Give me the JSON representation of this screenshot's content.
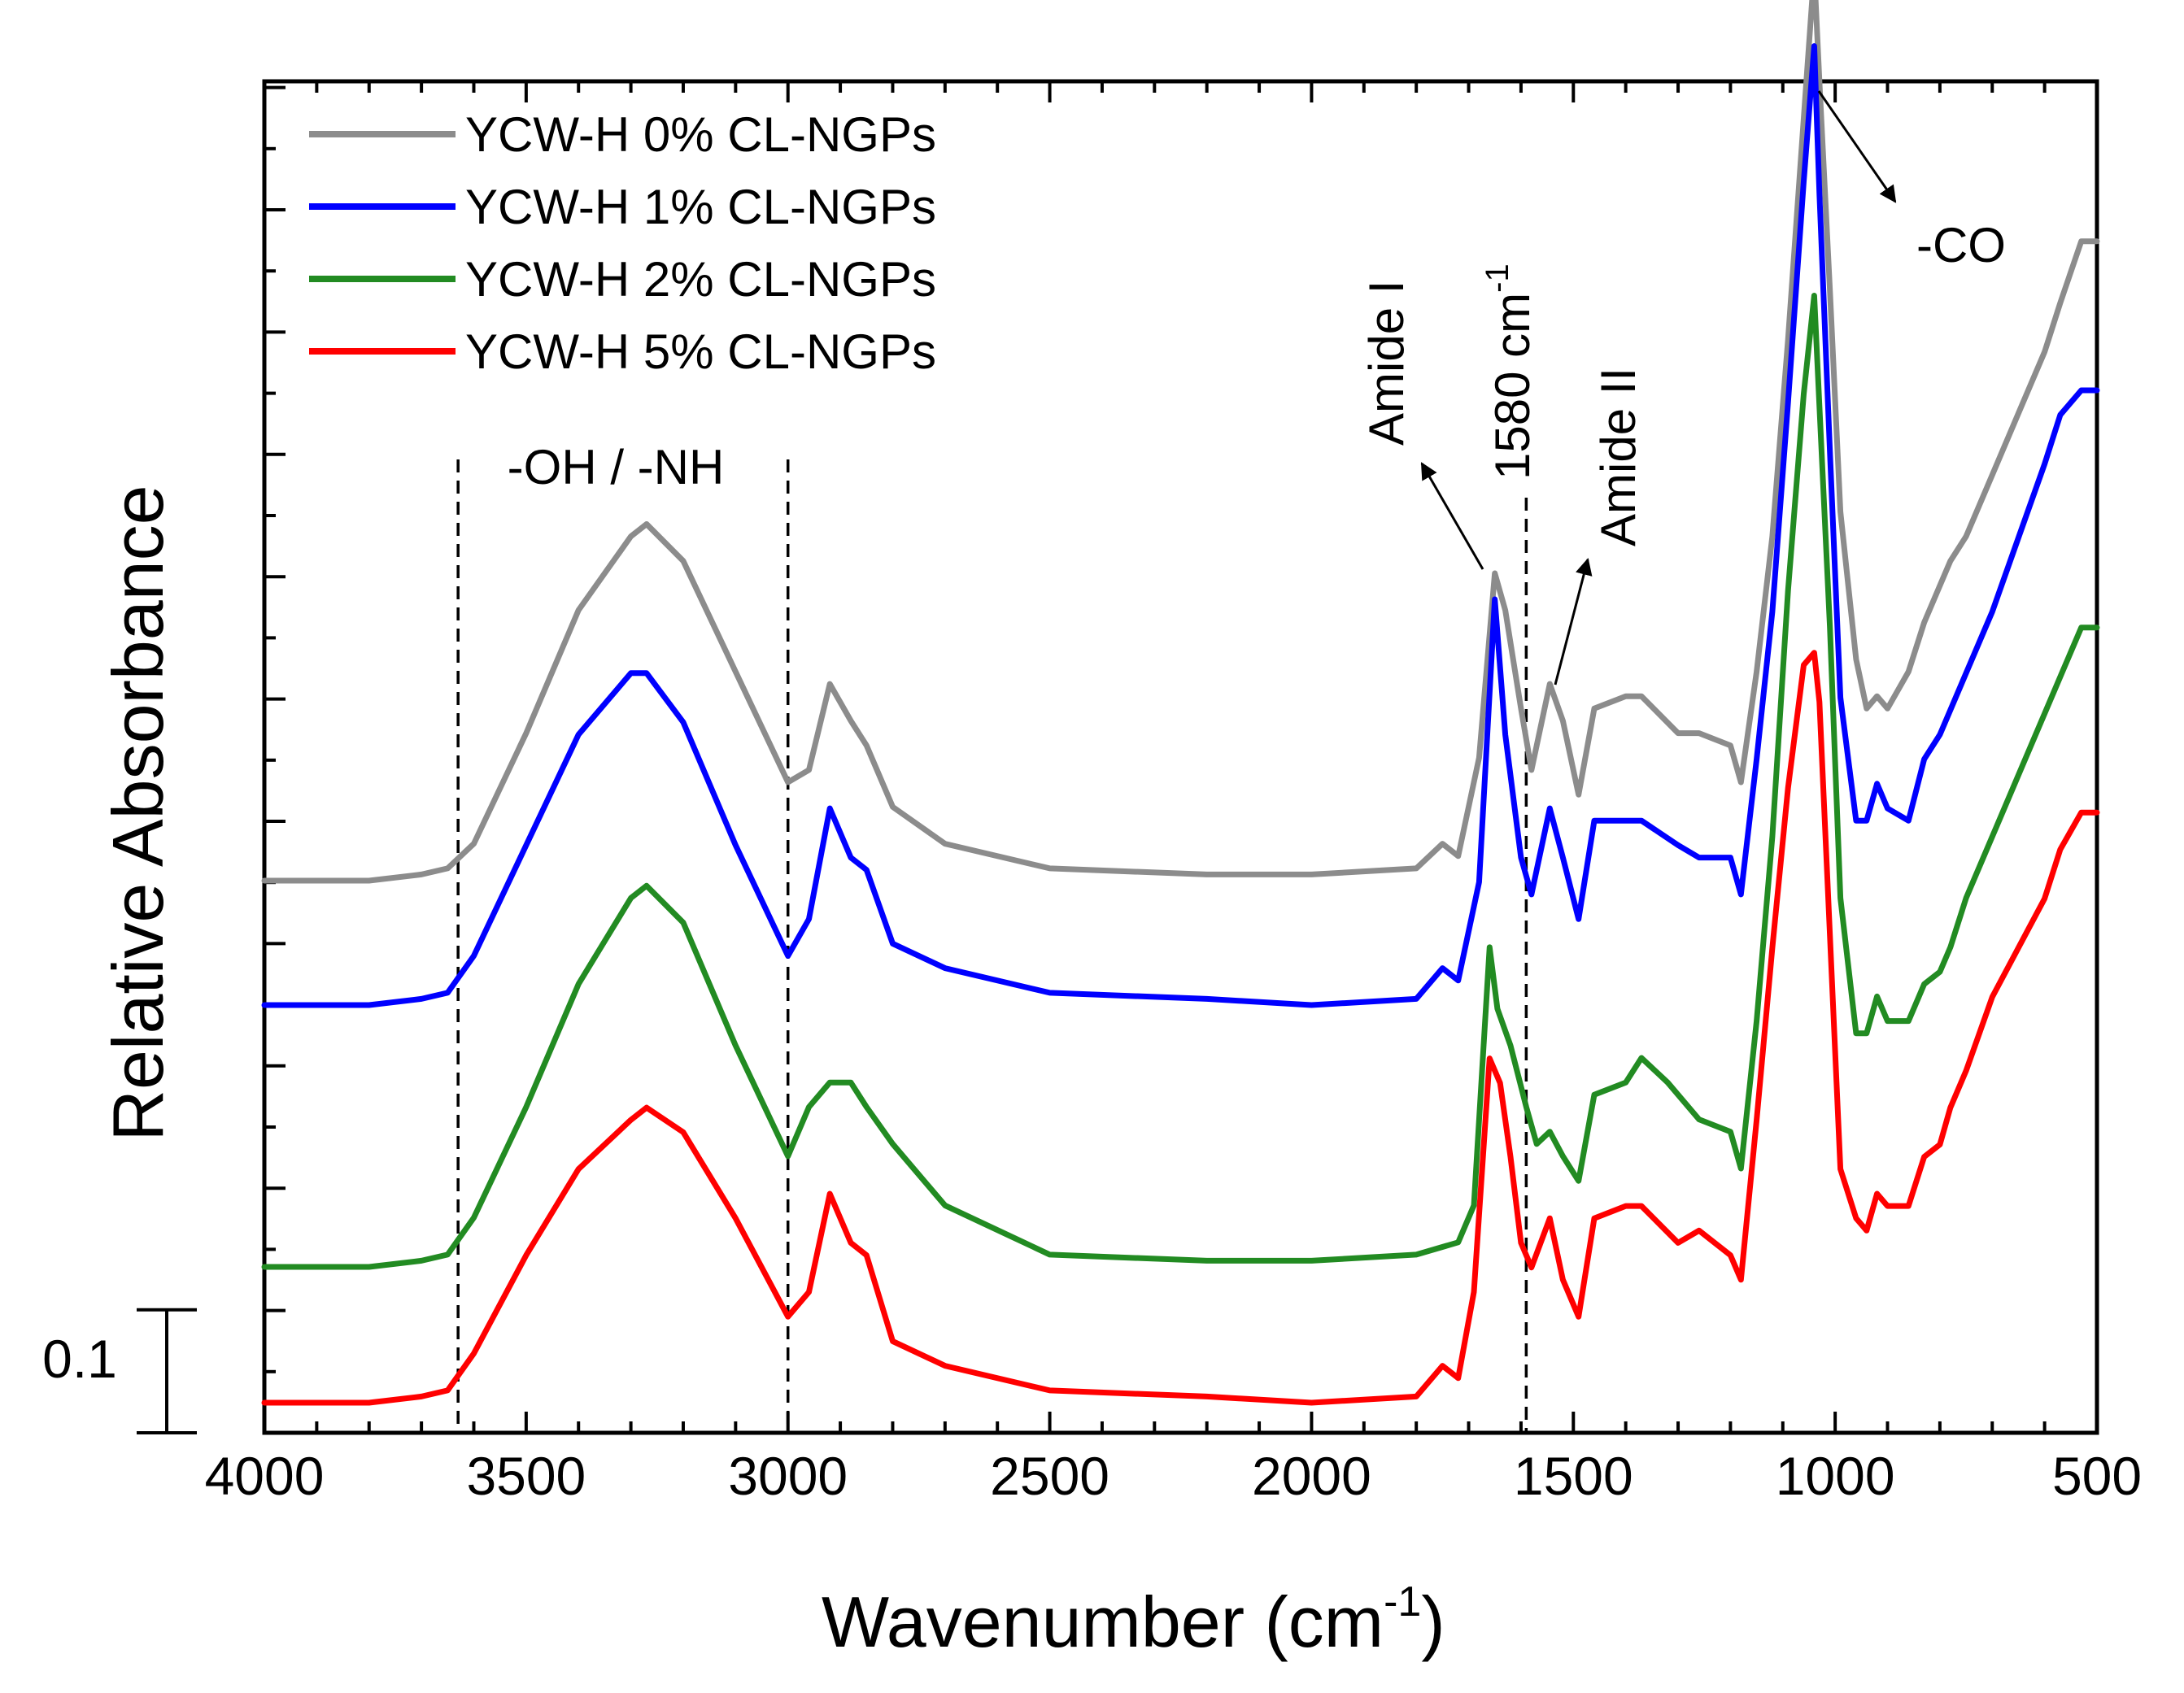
{
  "chart_data": {
    "type": "line",
    "title": "",
    "xlabel": "Wavenumber (cm",
    "xlabel_sup": "-1",
    "xlabel_close": ")",
    "ylabel": "Relative Absorbance",
    "xlim": [
      4000,
      500
    ],
    "x_reversed": true,
    "xticks": [
      4000,
      3500,
      3000,
      2500,
      2000,
      1500,
      1000,
      500
    ],
    "y_units": "relative absorbance (stacked, offset)",
    "scale_bar": {
      "label": "0.1",
      "value": 0.1
    },
    "y_offsets": [
      0.69,
      0.59,
      0.39,
      0.26
    ],
    "series": [
      {
        "name": "YCW-H 0% CL-NGPs",
        "color": "#8c8c8c",
        "points": [
          [
            4000,
            0
          ],
          [
            3800,
            0
          ],
          [
            3700,
            0.005
          ],
          [
            3650,
            0.01
          ],
          [
            3600,
            0.03
          ],
          [
            3500,
            0.12
          ],
          [
            3400,
            0.22
          ],
          [
            3300,
            0.28
          ],
          [
            3270,
            0.29
          ],
          [
            3200,
            0.26
          ],
          [
            3100,
            0.17
          ],
          [
            3000,
            0.08
          ],
          [
            2960,
            0.09
          ],
          [
            2920,
            0.16
          ],
          [
            2880,
            0.13
          ],
          [
            2850,
            0.11
          ],
          [
            2800,
            0.06
          ],
          [
            2700,
            0.03
          ],
          [
            2500,
            0.01
          ],
          [
            2200,
            0.005
          ],
          [
            2000,
            0.005
          ],
          [
            1800,
            0.01
          ],
          [
            1750,
            0.03
          ],
          [
            1720,
            0.02
          ],
          [
            1680,
            0.1
          ],
          [
            1650,
            0.25
          ],
          [
            1630,
            0.22
          ],
          [
            1600,
            0.14
          ],
          [
            1580,
            0.09
          ],
          [
            1545,
            0.16
          ],
          [
            1520,
            0.13
          ],
          [
            1490,
            0.07
          ],
          [
            1460,
            0.14
          ],
          [
            1400,
            0.15
          ],
          [
            1370,
            0.15
          ],
          [
            1300,
            0.12
          ],
          [
            1260,
            0.12
          ],
          [
            1200,
            0.11
          ],
          [
            1180,
            0.08
          ],
          [
            1150,
            0.17
          ],
          [
            1120,
            0.28
          ],
          [
            1090,
            0.44
          ],
          [
            1060,
            0.62
          ],
          [
            1040,
            0.74
          ],
          [
            1030,
            0.65
          ],
          [
            1010,
            0.48
          ],
          [
            990,
            0.3
          ],
          [
            960,
            0.18
          ],
          [
            940,
            0.14
          ],
          [
            920,
            0.15
          ],
          [
            900,
            0.14
          ],
          [
            860,
            0.17
          ],
          [
            830,
            0.21
          ],
          [
            800,
            0.24
          ],
          [
            780,
            0.26
          ],
          [
            750,
            0.28
          ],
          [
            700,
            0.33
          ],
          [
            650,
            0.38
          ],
          [
            600,
            0.43
          ],
          [
            570,
            0.47
          ],
          [
            530,
            0.52
          ],
          [
            500,
            0.52
          ]
        ]
      },
      {
        "name": "YCW-H 1% CL-NGPs",
        "color": "#0000ff",
        "points": [
          [
            4000,
            0
          ],
          [
            3800,
            0
          ],
          [
            3700,
            0.005
          ],
          [
            3650,
            0.01
          ],
          [
            3600,
            0.04
          ],
          [
            3500,
            0.13
          ],
          [
            3400,
            0.22
          ],
          [
            3300,
            0.27
          ],
          [
            3270,
            0.27
          ],
          [
            3200,
            0.23
          ],
          [
            3100,
            0.13
          ],
          [
            3000,
            0.04
          ],
          [
            2960,
            0.07
          ],
          [
            2920,
            0.16
          ],
          [
            2880,
            0.12
          ],
          [
            2850,
            0.11
          ],
          [
            2800,
            0.05
          ],
          [
            2700,
            0.03
          ],
          [
            2500,
            0.01
          ],
          [
            2200,
            0.005
          ],
          [
            2000,
            0.0
          ],
          [
            1800,
            0.005
          ],
          [
            1750,
            0.03
          ],
          [
            1720,
            0.02
          ],
          [
            1680,
            0.1
          ],
          [
            1650,
            0.33
          ],
          [
            1630,
            0.22
          ],
          [
            1600,
            0.12
          ],
          [
            1580,
            0.09
          ],
          [
            1545,
            0.16
          ],
          [
            1520,
            0.12
          ],
          [
            1490,
            0.07
          ],
          [
            1460,
            0.15
          ],
          [
            1400,
            0.15
          ],
          [
            1370,
            0.15
          ],
          [
            1300,
            0.13
          ],
          [
            1260,
            0.12
          ],
          [
            1200,
            0.12
          ],
          [
            1180,
            0.09
          ],
          [
            1150,
            0.2
          ],
          [
            1120,
            0.32
          ],
          [
            1090,
            0.49
          ],
          [
            1060,
            0.67
          ],
          [
            1040,
            0.78
          ],
          [
            1030,
            0.66
          ],
          [
            1010,
            0.45
          ],
          [
            990,
            0.25
          ],
          [
            960,
            0.15
          ],
          [
            940,
            0.15
          ],
          [
            920,
            0.18
          ],
          [
            900,
            0.16
          ],
          [
            860,
            0.15
          ],
          [
            830,
            0.2
          ],
          [
            800,
            0.22
          ],
          [
            780,
            0.24
          ],
          [
            750,
            0.27
          ],
          [
            700,
            0.32
          ],
          [
            650,
            0.38
          ],
          [
            600,
            0.44
          ],
          [
            570,
            0.48
          ],
          [
            530,
            0.5
          ],
          [
            500,
            0.5
          ]
        ]
      },
      {
        "name": "YCW-H 2% CL-NGPs",
        "color": "#228b22",
        "points": [
          [
            4000,
            0
          ],
          [
            3800,
            0
          ],
          [
            3700,
            0.005
          ],
          [
            3650,
            0.01
          ],
          [
            3600,
            0.04
          ],
          [
            3500,
            0.13
          ],
          [
            3400,
            0.23
          ],
          [
            3300,
            0.3
          ],
          [
            3270,
            0.31
          ],
          [
            3200,
            0.28
          ],
          [
            3100,
            0.18
          ],
          [
            3000,
            0.09
          ],
          [
            2960,
            0.13
          ],
          [
            2920,
            0.15
          ],
          [
            2880,
            0.15
          ],
          [
            2850,
            0.13
          ],
          [
            2800,
            0.1
          ],
          [
            2700,
            0.05
          ],
          [
            2500,
            0.01
          ],
          [
            2200,
            0.005
          ],
          [
            2000,
            0.005
          ],
          [
            1800,
            0.01
          ],
          [
            1720,
            0.02
          ],
          [
            1690,
            0.05
          ],
          [
            1660,
            0.26
          ],
          [
            1645,
            0.21
          ],
          [
            1620,
            0.18
          ],
          [
            1590,
            0.13
          ],
          [
            1570,
            0.1
          ],
          [
            1545,
            0.11
          ],
          [
            1520,
            0.09
          ],
          [
            1490,
            0.07
          ],
          [
            1460,
            0.14
          ],
          [
            1400,
            0.15
          ],
          [
            1370,
            0.17
          ],
          [
            1320,
            0.15
          ],
          [
            1260,
            0.12
          ],
          [
            1200,
            0.11
          ],
          [
            1180,
            0.08
          ],
          [
            1150,
            0.2
          ],
          [
            1120,
            0.35
          ],
          [
            1090,
            0.55
          ],
          [
            1060,
            0.71
          ],
          [
            1040,
            0.79
          ],
          [
            1030,
            0.7
          ],
          [
            1010,
            0.52
          ],
          [
            990,
            0.3
          ],
          [
            960,
            0.19
          ],
          [
            940,
            0.19
          ],
          [
            920,
            0.22
          ],
          [
            900,
            0.2
          ],
          [
            860,
            0.2
          ],
          [
            830,
            0.23
          ],
          [
            800,
            0.24
          ],
          [
            780,
            0.26
          ],
          [
            750,
            0.3
          ],
          [
            700,
            0.35
          ],
          [
            650,
            0.4
          ],
          [
            600,
            0.45
          ],
          [
            570,
            0.48
          ],
          [
            530,
            0.52
          ],
          [
            500,
            0.52
          ]
        ]
      },
      {
        "name": "YCW-H 5% CL-NGPs",
        "color": "#ff0000",
        "points": [
          [
            4000,
            0
          ],
          [
            3800,
            0
          ],
          [
            3700,
            0.005
          ],
          [
            3650,
            0.01
          ],
          [
            3600,
            0.04
          ],
          [
            3500,
            0.12
          ],
          [
            3400,
            0.19
          ],
          [
            3300,
            0.23
          ],
          [
            3270,
            0.24
          ],
          [
            3200,
            0.22
          ],
          [
            3100,
            0.15
          ],
          [
            3000,
            0.07
          ],
          [
            2960,
            0.09
          ],
          [
            2920,
            0.17
          ],
          [
            2880,
            0.13
          ],
          [
            2850,
            0.12
          ],
          [
            2800,
            0.05
          ],
          [
            2700,
            0.03
          ],
          [
            2500,
            0.01
          ],
          [
            2200,
            0.005
          ],
          [
            2000,
            0.0
          ],
          [
            1800,
            0.005
          ],
          [
            1750,
            0.03
          ],
          [
            1720,
            0.02
          ],
          [
            1690,
            0.09
          ],
          [
            1660,
            0.28
          ],
          [
            1640,
            0.26
          ],
          [
            1620,
            0.2
          ],
          [
            1600,
            0.13
          ],
          [
            1580,
            0.11
          ],
          [
            1545,
            0.15
          ],
          [
            1520,
            0.1
          ],
          [
            1490,
            0.07
          ],
          [
            1460,
            0.15
          ],
          [
            1400,
            0.16
          ],
          [
            1370,
            0.16
          ],
          [
            1300,
            0.13
          ],
          [
            1260,
            0.14
          ],
          [
            1200,
            0.12
          ],
          [
            1180,
            0.1
          ],
          [
            1150,
            0.23
          ],
          [
            1120,
            0.37
          ],
          [
            1090,
            0.5
          ],
          [
            1060,
            0.6
          ],
          [
            1040,
            0.61
          ],
          [
            1030,
            0.57
          ],
          [
            1010,
            0.38
          ],
          [
            990,
            0.19
          ],
          [
            960,
            0.15
          ],
          [
            940,
            0.14
          ],
          [
            920,
            0.17
          ],
          [
            900,
            0.16
          ],
          [
            860,
            0.16
          ],
          [
            830,
            0.2
          ],
          [
            800,
            0.21
          ],
          [
            780,
            0.24
          ],
          [
            750,
            0.27
          ],
          [
            700,
            0.33
          ],
          [
            650,
            0.37
          ],
          [
            600,
            0.41
          ],
          [
            570,
            0.45
          ],
          [
            530,
            0.48
          ],
          [
            500,
            0.48
          ]
        ]
      }
    ],
    "legend": {
      "placement": "top-left"
    },
    "annotations": {
      "oh_nh": "-OH / -NH",
      "amide_i": "Amide I",
      "band_1580": "1580 cm",
      "band_1580_sup": "-1",
      "amide_ii": "Amide II",
      "co": "-CO"
    },
    "dashed_lines_x": [
      3630,
      3000,
      1590
    ]
  }
}
